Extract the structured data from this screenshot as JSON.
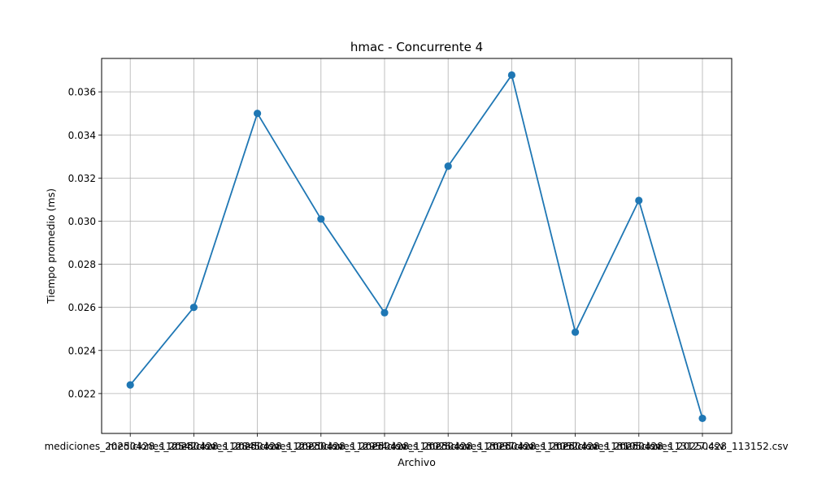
{
  "chart_data": {
    "type": "line",
    "title": "hmac - Concurrente 4",
    "xlabel": "Archivo",
    "ylabel": "Tiempo promedio (ms)",
    "categories": [
      "mediciones_20250428_112542.csv",
      "mediciones_20250428_112845.csv",
      "mediciones_20250428_112920.csv",
      "mediciones_20250428_112954.csv",
      "mediciones_20250428_113026.csv",
      "mediciones_20250428_113037.csv",
      "mediciones_20250428_113052.csv",
      "mediciones_20250428_113105.csv",
      "mediciones_20250428_113127.csv",
      "mediciones_20250428_113152.csv"
    ],
    "values": [
      0.0224,
      0.026,
      0.035,
      0.0301,
      0.02575,
      0.03255,
      0.03678,
      0.02485,
      0.03096,
      0.02085
    ],
    "ylim": [
      0.02015,
      0.03755
    ],
    "yticks": [
      "0.022",
      "0.024",
      "0.026",
      "0.028",
      "0.030",
      "0.032",
      "0.034",
      "0.036"
    ],
    "grid": true,
    "marker": "circle",
    "colors": {
      "line": "#1f77b4",
      "grid": "#b0b0b0",
      "axes": "#000000"
    }
  }
}
